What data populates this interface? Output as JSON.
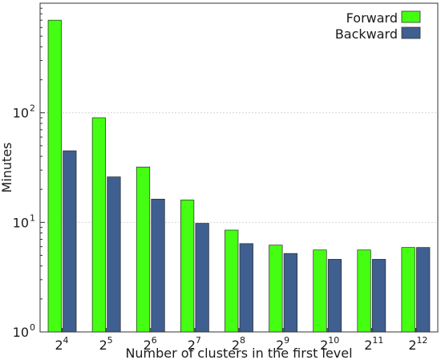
{
  "chart_data": {
    "type": "bar",
    "categories": [
      "2",
      "2",
      "2",
      "2",
      "2",
      "2",
      "2",
      "2",
      "2"
    ],
    "category_exponents": [
      "4",
      "5",
      "6",
      "7",
      "8",
      "9",
      "10",
      "11",
      "12"
    ],
    "series": [
      {
        "name": "Forward",
        "color": "#44ff11",
        "values": [
          700,
          90,
          32,
          16,
          8.5,
          6.2,
          5.6,
          5.6,
          5.9
        ]
      },
      {
        "name": "Backward",
        "color": "#3e5f8f",
        "values": [
          45,
          26,
          16.3,
          9.8,
          6.4,
          5.2,
          4.6,
          4.6,
          5.9
        ]
      }
    ],
    "xlabel": "Number of clusters in the first level",
    "ylabel": "Minutes",
    "yscale": "log",
    "ylim": [
      1,
      1000
    ],
    "yticks": [
      {
        "base": "10",
        "exp": "0",
        "value": 1
      },
      {
        "base": "10",
        "exp": "1",
        "value": 10
      },
      {
        "base": "10",
        "exp": "2",
        "value": 100
      }
    ],
    "grid": true,
    "legend_position": "top-right"
  }
}
